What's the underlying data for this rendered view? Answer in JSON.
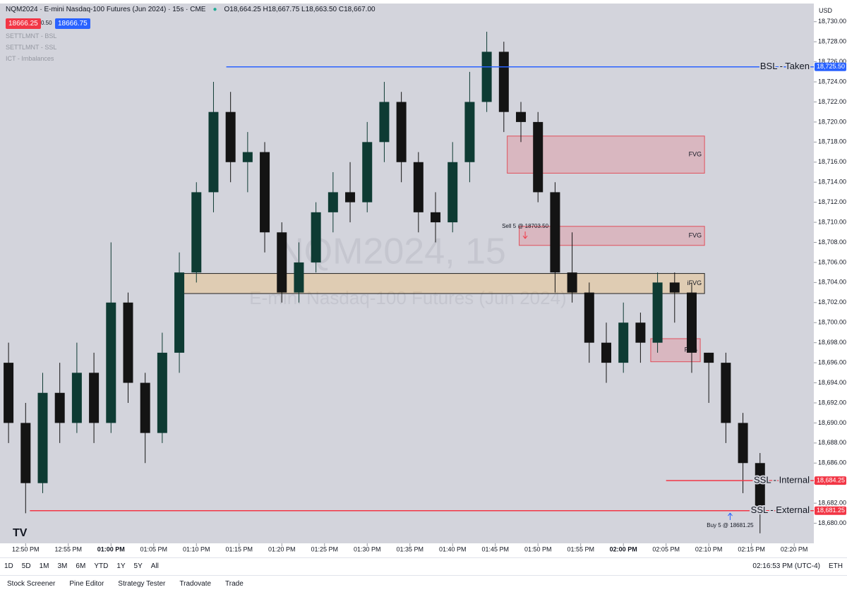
{
  "header": {
    "symbol": "NQM2024 · E-mini Nasdaq-100 Futures (Jun 2024) · 15s · CME",
    "ohlc": "O18,664.25 H18,667.75 L18,663.50 C18,667.00",
    "sell_price": "18666.25",
    "spread": "0.50",
    "buy_price": "18666.75",
    "currency": "USD"
  },
  "indicators": [
    "SETTLMNT - BSL",
    "SETTLMNT - SSL",
    "ICT - Imbalances"
  ],
  "watermark": {
    "line1": "NQM2024, 15",
    "line2": "E-mini Nasdaq-100 Futures (Jun 2024)"
  },
  "chart_data": {
    "type": "candlestick",
    "x": [
      -2,
      0,
      2,
      4,
      6,
      8,
      10,
      12,
      14,
      16,
      18,
      20,
      22,
      24,
      26,
      28,
      30,
      32,
      34,
      36,
      38,
      40,
      42,
      44,
      46,
      48,
      50,
      52,
      54,
      56,
      58,
      60,
      62,
      64,
      66,
      68,
      70,
      72,
      74,
      76,
      78,
      80,
      82,
      84,
      86
    ],
    "open": [
      18696,
      18690,
      18684,
      18693,
      18690,
      18695,
      18690,
      18702,
      18694,
      18689,
      18697,
      18705,
      18713,
      18721,
      18716,
      18717,
      18709,
      18703,
      18706,
      18711,
      18713,
      18712,
      18718,
      18722,
      18716,
      18711,
      18710,
      18716,
      18722,
      18727,
      18721,
      18720,
      18713,
      18705,
      18703,
      18698,
      18696,
      18700,
      18698,
      18704,
      18703,
      18697,
      18696,
      18690,
      18686
    ],
    "high": [
      18698,
      18692,
      18695,
      18696,
      18698,
      18697,
      18708,
      18703,
      18695,
      18699,
      18707,
      18714,
      18724,
      18723,
      18719,
      18718,
      18710,
      18708,
      18712,
      18715,
      18716,
      18720,
      18724,
      18723,
      18717,
      18713,
      18718,
      18725,
      18729,
      18728,
      18722,
      18721,
      18714,
      18709,
      18704,
      18700,
      18702,
      18701,
      18705,
      18705,
      18704,
      18697,
      18697,
      18691,
      18687
    ],
    "low": [
      18688,
      18681,
      18683,
      18688,
      18689,
      18688,
      18689,
      18692,
      18686,
      18688,
      18695,
      18704,
      18711,
      18714,
      18713,
      18707,
      18702,
      18702,
      18705,
      18709,
      18710,
      18711,
      18716,
      18714,
      18709,
      18708,
      18709,
      18714,
      18721,
      18719,
      18718,
      18712,
      18703,
      18702,
      18696,
      18694,
      18695,
      18696,
      18697,
      18700,
      18695,
      18692,
      18688,
      18683,
      18679
    ],
    "close": [
      18690,
      18684,
      18693,
      18690,
      18695,
      18690,
      18702,
      18694,
      18689,
      18697,
      18705,
      18713,
      18721,
      18716,
      18717,
      18709,
      18703,
      18706,
      18711,
      18713,
      18712,
      18718,
      18722,
      18716,
      18711,
      18710,
      18716,
      18722,
      18727,
      18721,
      18720,
      18713,
      18705,
      18703,
      18698,
      18696,
      18700,
      18698,
      18704,
      18703,
      18697,
      18696,
      18690,
      18686,
      18681
    ],
    "up_color": "#0e3b33",
    "down_color": "#141414",
    "xlim": [
      -3,
      92.3
    ],
    "ylim": [
      18678,
      18731.6
    ],
    "xticks": [
      {
        "value": 0,
        "label": "12:50 PM"
      },
      {
        "value": 5,
        "label": "12:55 PM"
      },
      {
        "value": 10,
        "label": "01:00 PM"
      },
      {
        "value": 15,
        "label": "01:05 PM"
      },
      {
        "value": 20,
        "label": "01:10 PM"
      },
      {
        "value": 25,
        "label": "01:15 PM"
      },
      {
        "value": 30,
        "label": "01:20 PM"
      },
      {
        "value": 35,
        "label": "01:25 PM"
      },
      {
        "value": 40,
        "label": "01:30 PM"
      },
      {
        "value": 45,
        "label": "01:35 PM"
      },
      {
        "value": 50,
        "label": "01:40 PM"
      },
      {
        "value": 55,
        "label": "01:45 PM"
      },
      {
        "value": 60,
        "label": "01:50 PM"
      },
      {
        "value": 65,
        "label": "01:55 PM"
      },
      {
        "value": 70,
        "label": "02:00 PM"
      },
      {
        "value": 75,
        "label": "02:05 PM"
      },
      {
        "value": 80,
        "label": "02:10 PM"
      },
      {
        "value": 85,
        "label": "02:15 PM"
      },
      {
        "value": 90,
        "label": "02:20 PM"
      }
    ],
    "yticks": [
      {
        "value": 18680,
        "label": "18,680.00"
      },
      {
        "value": 18682,
        "label": "18,682.00"
      },
      {
        "value": 18684,
        "label": "18,684.00"
      },
      {
        "value": 18686,
        "label": "18,686.00"
      },
      {
        "value": 18688,
        "label": "18,688.00"
      },
      {
        "value": 18690,
        "label": "18,690.00"
      },
      {
        "value": 18692,
        "label": "18,692.00"
      },
      {
        "value": 18694,
        "label": "18,694.00"
      },
      {
        "value": 18696,
        "label": "18,696.00"
      },
      {
        "value": 18698,
        "label": "18,698.00"
      },
      {
        "value": 18700,
        "label": "18,700.00"
      },
      {
        "value": 18702,
        "label": "18,702.00"
      },
      {
        "value": 18704,
        "label": "18,704.00"
      },
      {
        "value": 18706,
        "label": "18,706.00"
      },
      {
        "value": 18708,
        "label": "18,708.00"
      },
      {
        "value": 18710,
        "label": "18,710.00"
      },
      {
        "value": 18712,
        "label": "18,712.00"
      },
      {
        "value": 18714,
        "label": "18,714.00"
      },
      {
        "value": 18716,
        "label": "18,716.00"
      },
      {
        "value": 18718,
        "label": "18,718.00"
      },
      {
        "value": 18720,
        "label": "18,720.00"
      },
      {
        "value": 18722,
        "label": "18,722.00"
      },
      {
        "value": 18724,
        "label": "18,724.00"
      },
      {
        "value": 18726,
        "label": "18,726.00"
      },
      {
        "value": 18728,
        "label": "18,728.00"
      },
      {
        "value": 18730,
        "label": "18,730.00"
      }
    ],
    "levels": [
      {
        "label": "BSL - Taken",
        "price": 18725.5,
        "price_label": "18,725.50",
        "start": 23.5,
        "color": "#2962ff"
      },
      {
        "label": "SSL - Internal",
        "price": 18684.25,
        "price_label": "18,684.25",
        "start": 75,
        "color": "#f23645"
      },
      {
        "label": "SSL - External",
        "price": 18681.25,
        "price_label": "18,681.25",
        "start": 0.5,
        "color": "#f23645"
      }
    ],
    "zones": [
      {
        "label": "FVG",
        "top": 18718.6,
        "bottom": 18714.9,
        "start": 56.4,
        "end": 79.5,
        "fill": "rgba(242,54,69,0.18)",
        "stroke": "#e0505c"
      },
      {
        "label": "FVG",
        "top": 18709.6,
        "bottom": 18707.7,
        "start": 57.8,
        "end": 79.5,
        "fill": "rgba(242,54,69,0.18)",
        "stroke": "#e0505c"
      },
      {
        "label": "iFVG",
        "top": 18704.9,
        "bottom": 18702.9,
        "start": 18,
        "end": 79.5,
        "fill": "rgba(255,183,77,0.28)",
        "stroke": "#222222"
      },
      {
        "label": "FVG",
        "top": 18698.4,
        "bottom": 18696.1,
        "start": 73.2,
        "end": 79,
        "fill": "rgba(242,54,69,0.18)",
        "stroke": "#e0505c"
      }
    ],
    "trades": [
      {
        "label": "Sell 5 @ 18703.50",
        "x": 58.5,
        "price": 18708.8,
        "color": "#f23645"
      },
      {
        "label": "Buy 5 @ 18681.25",
        "x": 82.5,
        "price": 18680.6,
        "color": "#2962ff"
      }
    ]
  },
  "toolbar": {
    "ranges": [
      "1D",
      "5D",
      "1M",
      "3M",
      "6M",
      "YTD",
      "1Y",
      "5Y",
      "All"
    ],
    "clock": "02:16:53 PM (UTC-4)",
    "session": "ETH"
  },
  "tabs": [
    "Stock Screener",
    "Pine Editor",
    "Strategy Tester",
    "Tradovate",
    "Trade"
  ]
}
